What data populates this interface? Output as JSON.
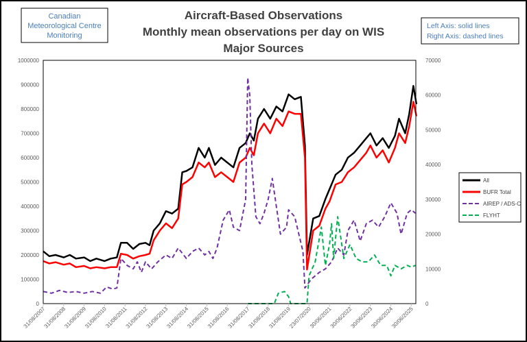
{
  "chart_data": {
    "type": "line",
    "title": [
      "Aircraft-Based Observations",
      "Monthly mean observations per day on WIS",
      "Major Sources"
    ],
    "org_box": [
      "Canadian",
      "Meteorological Centre",
      "Monitoring"
    ],
    "axis_note": [
      "Left Axis: solid lines",
      "Right Axis: dashed lines"
    ],
    "x_tick_labels": [
      "31/08/2007",
      "31/08/2008",
      "31/08/2009",
      "31/08/2010",
      "31/08/2011",
      "31/08/2012",
      "31/08/2013",
      "31/08/2014",
      "31/08/2015",
      "31/08/2016",
      "31/08/2017",
      "31/08/2018",
      "31/08/2019",
      "23/07/2020",
      "30/06/2021",
      "30/06/2022",
      "30/06/2023",
      "30/06/2024",
      "30/06/2025"
    ],
    "left_axis": {
      "ylim": [
        0,
        1000000
      ],
      "ticks": [
        "0",
        "100000",
        "200000",
        "300000",
        "400000",
        "500000",
        "600000",
        "700000",
        "800000",
        "900000",
        "1000000"
      ]
    },
    "right_axis": {
      "ylim": [
        0,
        70000
      ],
      "ticks": [
        "0",
        "10000",
        "20000",
        "30000",
        "40000",
        "50000",
        "60000",
        "70000"
      ]
    },
    "xlim": [
      2007.7,
      2025.95
    ],
    "legend_position": "right",
    "series": [
      {
        "name": "All",
        "axis": "left",
        "style": "solid",
        "color": "#000000",
        "x": [
          2007.7,
          2008.0,
          2008.3,
          2008.7,
          2009.0,
          2009.3,
          2009.7,
          2010.0,
          2010.3,
          2010.7,
          2011.0,
          2011.3,
          2011.5,
          2011.8,
          2012.1,
          2012.4,
          2012.7,
          2012.9,
          2013.1,
          2013.4,
          2013.7,
          2014.0,
          2014.3,
          2014.5,
          2014.7,
          2015.0,
          2015.3,
          2015.6,
          2015.8,
          2016.1,
          2016.4,
          2016.7,
          2017.0,
          2017.3,
          2017.6,
          2017.8,
          2018.0,
          2018.2,
          2018.5,
          2018.8,
          2019.1,
          2019.4,
          2019.7,
          2020.0,
          2020.3,
          2020.5,
          2020.6,
          2020.9,
          2021.2,
          2021.5,
          2021.7,
          2022.0,
          2022.3,
          2022.6,
          2022.9,
          2023.2,
          2023.5,
          2023.7,
          2024.0,
          2024.3,
          2024.6,
          2024.9,
          2025.1,
          2025.4,
          2025.6,
          2025.8,
          2025.95
        ],
        "y": [
          215000,
          195000,
          200000,
          190000,
          200000,
          185000,
          190000,
          175000,
          185000,
          175000,
          185000,
          190000,
          250000,
          250000,
          225000,
          245000,
          250000,
          240000,
          300000,
          330000,
          380000,
          370000,
          390000,
          540000,
          545000,
          560000,
          640000,
          600000,
          640000,
          570000,
          600000,
          580000,
          560000,
          640000,
          660000,
          700000,
          670000,
          760000,
          800000,
          760000,
          810000,
          790000,
          860000,
          840000,
          850000,
          650000,
          200000,
          350000,
          360000,
          430000,
          470000,
          530000,
          550000,
          600000,
          620000,
          650000,
          680000,
          700000,
          650000,
          680000,
          640000,
          690000,
          760000,
          700000,
          780000,
          895000,
          820000
        ]
      },
      {
        "name": "BUFR Total",
        "axis": "left",
        "style": "solid",
        "color": "#ff0000",
        "x": [
          2007.7,
          2008.0,
          2008.3,
          2008.7,
          2009.0,
          2009.3,
          2009.7,
          2010.0,
          2010.3,
          2010.7,
          2011.0,
          2011.3,
          2011.5,
          2011.8,
          2012.1,
          2012.4,
          2012.7,
          2012.9,
          2013.1,
          2013.4,
          2013.7,
          2014.0,
          2014.3,
          2014.5,
          2014.7,
          2015.0,
          2015.3,
          2015.6,
          2015.8,
          2016.1,
          2016.4,
          2016.7,
          2017.0,
          2017.3,
          2017.6,
          2017.8,
          2018.0,
          2018.2,
          2018.5,
          2018.8,
          2019.1,
          2019.4,
          2019.7,
          2020.0,
          2020.3,
          2020.5,
          2020.6,
          2020.9,
          2021.2,
          2021.5,
          2021.7,
          2022.0,
          2022.3,
          2022.6,
          2022.9,
          2023.2,
          2023.5,
          2023.7,
          2024.0,
          2024.3,
          2024.6,
          2024.9,
          2025.1,
          2025.4,
          2025.6,
          2025.8,
          2025.95
        ],
        "y": [
          175000,
          165000,
          170000,
          160000,
          165000,
          150000,
          155000,
          145000,
          150000,
          145000,
          150000,
          150000,
          205000,
          200000,
          185000,
          195000,
          200000,
          205000,
          260000,
          300000,
          330000,
          310000,
          350000,
          490000,
          500000,
          520000,
          580000,
          560000,
          580000,
          520000,
          540000,
          520000,
          500000,
          580000,
          600000,
          640000,
          610000,
          700000,
          740000,
          700000,
          760000,
          730000,
          790000,
          780000,
          780000,
          600000,
          140000,
          300000,
          320000,
          390000,
          420000,
          490000,
          500000,
          540000,
          560000,
          590000,
          620000,
          650000,
          600000,
          630000,
          580000,
          640000,
          700000,
          660000,
          730000,
          830000,
          770000
        ]
      },
      {
        "name": "AIREP / ADS-C",
        "axis": "right",
        "style": "dashed",
        "color": "#7030a0",
        "x": [
          2007.7,
          2008.1,
          2008.5,
          2008.9,
          2009.3,
          2009.7,
          2010.1,
          2010.5,
          2010.8,
          2011.1,
          2011.3,
          2011.5,
          2011.8,
          2012.1,
          2012.3,
          2012.5,
          2012.7,
          2013.0,
          2013.3,
          2013.7,
          2014.0,
          2014.3,
          2014.7,
          2015.0,
          2015.3,
          2015.6,
          2015.8,
          2016.0,
          2016.2,
          2016.5,
          2016.8,
          2017.0,
          2017.3,
          2017.6,
          2017.7,
          2017.8,
          2017.9,
          2018.1,
          2018.3,
          2018.5,
          2018.7,
          2018.9,
          2019.1,
          2019.3,
          2019.6,
          2019.7,
          2020.0,
          2020.2,
          2020.4,
          2020.5,
          2020.8,
          2021.2,
          2021.5,
          2021.8,
          2022.1,
          2022.4,
          2022.6,
          2022.9,
          2023.2,
          2023.5,
          2023.8,
          2024.1,
          2024.4,
          2024.7,
          2025.0,
          2025.2,
          2025.5,
          2025.7,
          2025.9
        ],
        "y": [
          3500,
          3000,
          3800,
          3200,
          3500,
          3000,
          3500,
          3000,
          4800,
          4200,
          4500,
          13000,
          11000,
          10000,
          12000,
          9000,
          12000,
          10000,
          12000,
          14000,
          13000,
          16000,
          13000,
          15000,
          16000,
          14000,
          15000,
          13000,
          16000,
          24000,
          27000,
          22000,
          21000,
          30000,
          65000,
          60000,
          40000,
          25000,
          23000,
          26000,
          30000,
          36000,
          28000,
          20000,
          22000,
          27000,
          25000,
          20000,
          15000,
          4500,
          7000,
          9000,
          10000,
          12000,
          16000,
          14000,
          21000,
          24000,
          18000,
          23000,
          24000,
          22000,
          25000,
          29000,
          26000,
          20000,
          26000,
          27000,
          26000
        ]
      },
      {
        "name": "FLYHT",
        "axis": "right",
        "style": "dashed",
        "color": "#00b050",
        "x": [
          2017.7,
          2019.0,
          2019.2,
          2019.5,
          2019.7,
          2019.8,
          2020.6,
          2020.7,
          2021.0,
          2021.3,
          2021.5,
          2021.7,
          2021.8,
          2021.9,
          2022.1,
          2022.4,
          2022.7,
          2023.0,
          2023.3,
          2023.6,
          2023.9,
          2024.2,
          2024.5,
          2024.7,
          2024.9,
          2025.2,
          2025.5,
          2025.7,
          2025.9
        ],
        "y": [
          0,
          0,
          3000,
          3500,
          2000,
          0,
          0,
          8000,
          12000,
          22000,
          11000,
          17000,
          23000,
          13000,
          25000,
          13000,
          17000,
          13000,
          12000,
          12000,
          14000,
          11000,
          11000,
          8000,
          11000,
          10000,
          11000,
          10500,
          11000
        ]
      }
    ]
  }
}
